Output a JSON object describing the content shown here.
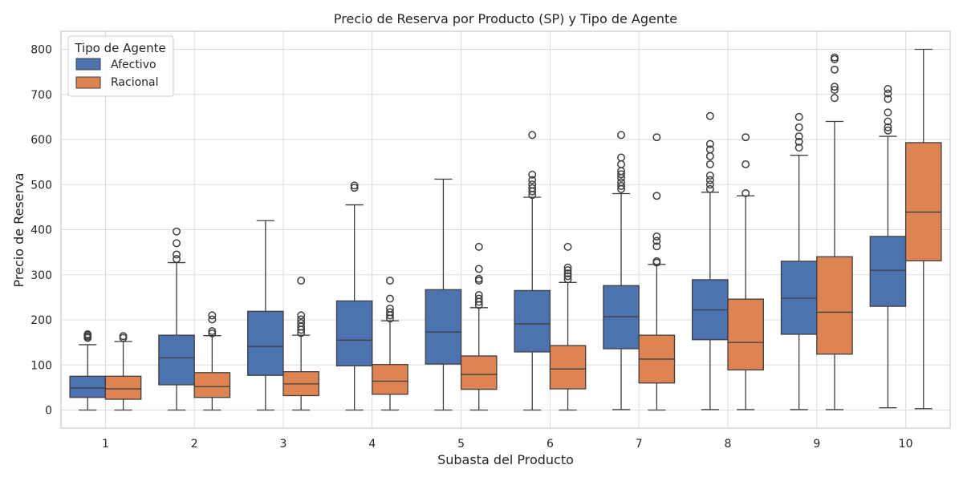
{
  "chart_data": {
    "type": "boxplot",
    "title": "Precio de Reserva por Producto (SP) y Tipo de Agente",
    "xlabel": "Subasta del Producto",
    "ylabel": "Precio de Reserva",
    "categories": [
      "1",
      "2",
      "3",
      "4",
      "5",
      "6",
      "7",
      "8",
      "9",
      "10"
    ],
    "y_ticks": [
      "0",
      "100",
      "200",
      "300",
      "400",
      "500",
      "600",
      "700",
      "800"
    ],
    "ylim": [
      -40,
      840
    ],
    "grid": true,
    "legend": {
      "title": "Tipo de Agente",
      "placement": "top-left"
    },
    "series": [
      {
        "name": "Afectivo",
        "color": "#4c72b0",
        "boxes": [
          {
            "min": 0,
            "q1": 28,
            "median": 49,
            "q3": 75,
            "max": 145,
            "outliers": [
              160,
              163,
              166,
              168
            ]
          },
          {
            "min": 0,
            "q1": 56,
            "median": 116,
            "q3": 166,
            "max": 327,
            "outliers": [
              335,
              345,
              370,
              396
            ]
          },
          {
            "min": 0,
            "q1": 77,
            "median": 141,
            "q3": 219,
            "max": 420,
            "outliers": []
          },
          {
            "min": 0,
            "q1": 98,
            "median": 155,
            "q3": 242,
            "max": 455,
            "outliers": [
              493,
              498
            ]
          },
          {
            "min": 0,
            "q1": 102,
            "median": 173,
            "q3": 267,
            "max": 512,
            "outliers": []
          },
          {
            "min": 0,
            "q1": 129,
            "median": 191,
            "q3": 265,
            "max": 472,
            "outliers": [
              477,
              485,
              492,
              500,
              510,
              522,
              610
            ]
          },
          {
            "min": 1,
            "q1": 136,
            "median": 207,
            "q3": 276,
            "max": 480,
            "outliers": [
              490,
              497,
              505,
              515,
              523,
              530,
              545,
              560,
              610
            ]
          },
          {
            "min": 1,
            "q1": 156,
            "median": 222,
            "q3": 289,
            "max": 483,
            "outliers": [
              490,
              500,
              510,
              520,
              545,
              563,
              578,
              590,
              652
            ]
          },
          {
            "min": 1,
            "q1": 168,
            "median": 248,
            "q3": 330,
            "max": 565,
            "outliers": [
              582,
              595,
              607,
              627,
              650
            ]
          },
          {
            "min": 5,
            "q1": 230,
            "median": 310,
            "q3": 385,
            "max": 607,
            "outliers": [
              620,
              627,
              640,
              660,
              690,
              702,
              712
            ]
          }
        ]
      },
      {
        "name": "Racional",
        "color": "#dd8452",
        "boxes": [
          {
            "min": 0,
            "q1": 24,
            "median": 47,
            "q3": 75,
            "max": 152,
            "outliers": [
              160,
              164
            ]
          },
          {
            "min": 0,
            "q1": 28,
            "median": 52,
            "q3": 83,
            "max": 165,
            "outliers": [
              170,
              175,
              201,
              210
            ]
          },
          {
            "min": 0,
            "q1": 32,
            "median": 58,
            "q3": 85,
            "max": 166,
            "outliers": [
              171,
              178,
              185,
              193,
              201,
              210,
              287
            ]
          },
          {
            "min": 0,
            "q1": 35,
            "median": 64,
            "q3": 101,
            "max": 198,
            "outliers": [
              203,
              210,
              217,
              225,
              247,
              287
            ]
          },
          {
            "min": 0,
            "q1": 46,
            "median": 79,
            "q3": 120,
            "max": 227,
            "outliers": [
              233,
              240,
              247,
              255,
              287,
              291,
              313,
              362
            ]
          },
          {
            "min": 0,
            "q1": 47,
            "median": 91,
            "q3": 143,
            "max": 283,
            "outliers": [
              290,
              297,
              303,
              310,
              316,
              362
            ]
          },
          {
            "min": 0,
            "q1": 60,
            "median": 113,
            "q3": 166,
            "max": 323,
            "outliers": [
              327,
              330,
              363,
              375,
              385,
              475,
              605
            ]
          },
          {
            "min": 1,
            "q1": 89,
            "median": 150,
            "q3": 246,
            "max": 475,
            "outliers": [
              481,
              545,
              605
            ]
          },
          {
            "min": 1,
            "q1": 124,
            "median": 217,
            "q3": 340,
            "max": 640,
            "outliers": [
              692,
              710,
              717,
              755,
              778,
              782
            ]
          },
          {
            "min": 3,
            "q1": 331,
            "median": 439,
            "q3": 593,
            "max": 800,
            "outliers": []
          }
        ]
      }
    ]
  }
}
